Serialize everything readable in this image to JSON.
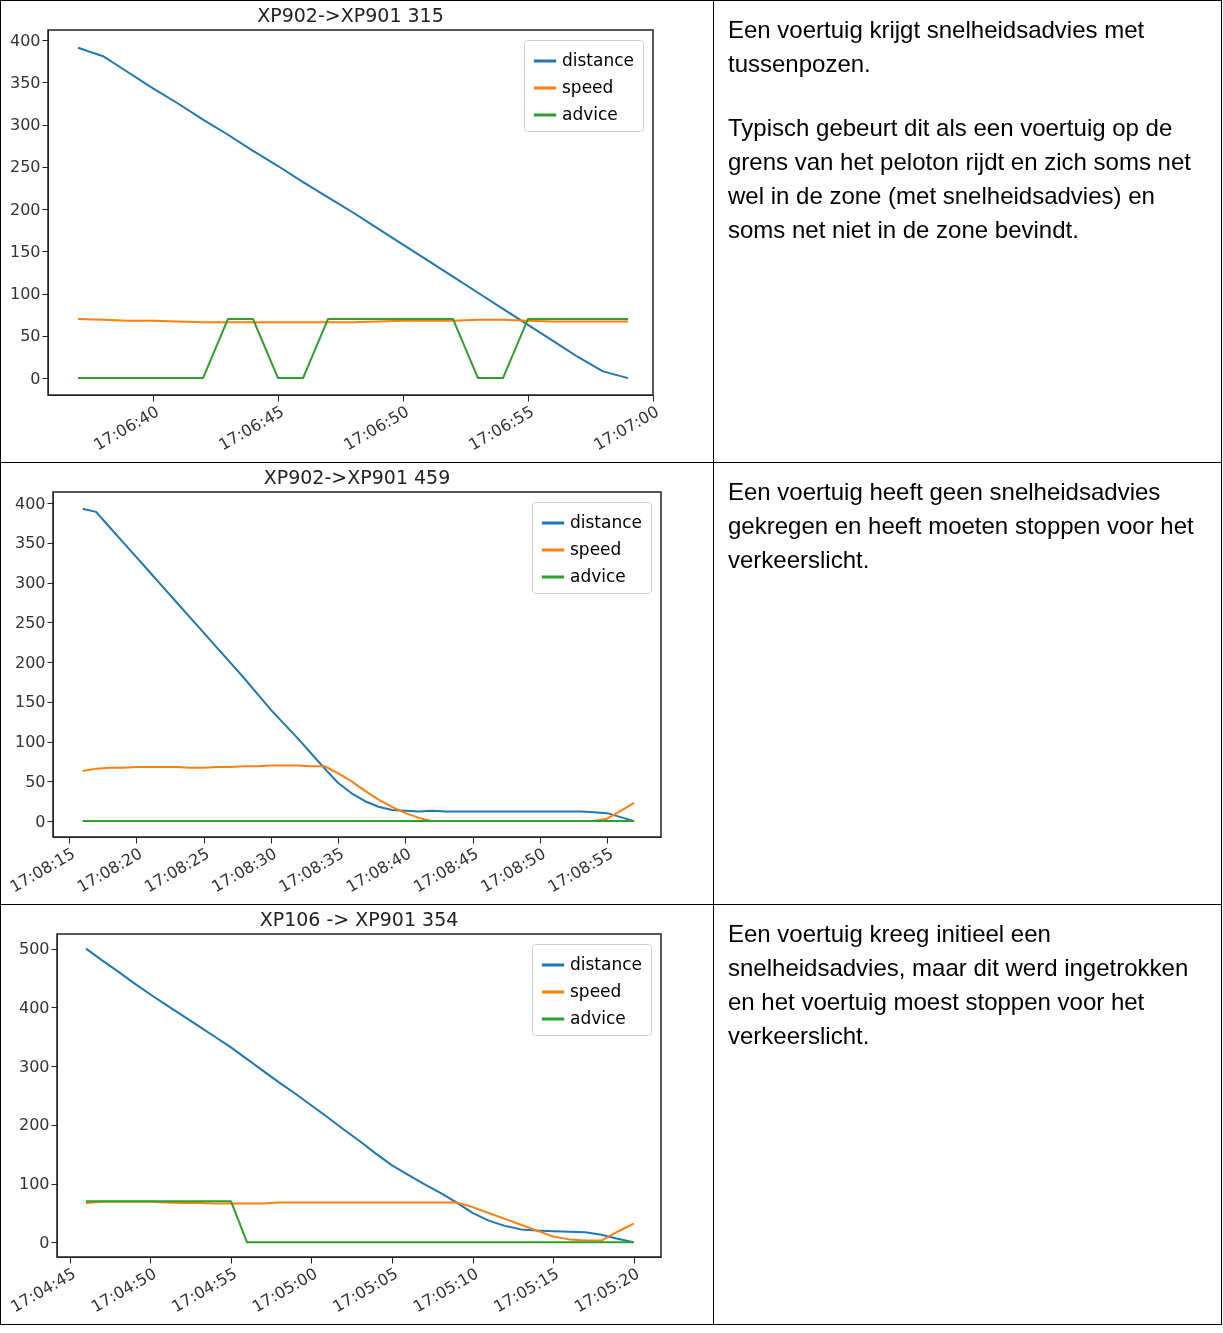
{
  "chart_data": [
    {
      "type": "line",
      "title": "XP902->XP901 315",
      "legend": "top right",
      "grid": false,
      "x": [
        17.110278,
        17.110556,
        17.110833,
        17.111111,
        17.111389,
        17.111667,
        17.111944,
        17.112222,
        17.1125,
        17.112778,
        17.113056,
        17.113333,
        17.113611,
        17.113889,
        17.114167,
        17.114444,
        17.114722,
        17.115,
        17.115278,
        17.115556,
        17.115833,
        17.116111,
        17.116389
      ],
      "xlim": [
        17.109944,
        17.116667
      ],
      "xticks": [
        {
          "value": 17.111111,
          "label": "17:06:40"
        },
        {
          "value": 17.1125,
          "label": "17:06:45"
        },
        {
          "value": 17.113889,
          "label": "17:06:50"
        },
        {
          "value": 17.115278,
          "label": "17:06:55"
        },
        {
          "value": 17.116667,
          "label": "17:07:00"
        }
      ],
      "ylim": [
        -20,
        412
      ],
      "yticks": [
        0,
        50,
        100,
        150,
        200,
        250,
        300,
        350,
        400
      ],
      "series": [
        {
          "name": "distance",
          "color": "#1f77b4",
          "values": [
            391,
            381,
            362,
            343,
            325,
            306,
            288,
            269,
            251,
            232,
            214,
            196,
            177,
            158,
            139,
            120,
            101,
            82,
            63,
            44,
            25,
            8,
            0
          ]
        },
        {
          "name": "speed",
          "color": "#ff7f0e",
          "values": [
            70,
            69,
            68,
            68,
            67,
            66,
            66,
            66,
            66,
            66,
            66,
            66,
            67,
            68,
            68,
            68,
            69,
            69,
            68,
            67,
            67,
            67,
            67
          ]
        },
        {
          "name": "advice",
          "color": "#2ca02c",
          "values": [
            0,
            0,
            0,
            0,
            0,
            0,
            70,
            70,
            0,
            0,
            70,
            70,
            70,
            70,
            70,
            70,
            0,
            0,
            70,
            70,
            70,
            70,
            70
          ]
        }
      ]
    },
    {
      "type": "other",
      "annotations": [
        "Een voertuig krijgt snelheidsadvies met tussenpozen.",
        "Typisch gebeurt dit als een voertuig op de grens van het peloton rijdt en zich soms net wel in de zone (met snelheidsadvies) en soms net niet in de zone bevindt."
      ]
    },
    {
      "type": "line",
      "title": "XP902->XP901 459",
      "legend": "top right",
      "grid": false,
      "x": [
        17.137778,
        17.138056,
        17.138333,
        17.138611,
        17.138889,
        17.139167,
        17.139444,
        17.139722,
        17.14,
        17.140278,
        17.140556,
        17.140833,
        17.141111,
        17.141389,
        17.141667,
        17.141944,
        17.142222,
        17.1425,
        17.142778,
        17.143056,
        17.143333,
        17.143611,
        17.143889,
        17.144167,
        17.144444,
        17.144722,
        17.145,
        17.145278,
        17.145556,
        17.145833,
        17.146111,
        17.146389,
        17.146667,
        17.146944,
        17.147222,
        17.1475,
        17.147778,
        17.148056,
        17.148333,
        17.148611,
        17.148889,
        17.149167
      ],
      "xlim": [
        17.137167,
        17.149722
      ],
      "xticks": [
        {
          "value": 17.1375,
          "label": "17:08:15"
        },
        {
          "value": 17.138889,
          "label": "17:08:20"
        },
        {
          "value": 17.140278,
          "label": "17:08:25"
        },
        {
          "value": 17.141667,
          "label": "17:08:30"
        },
        {
          "value": 17.143056,
          "label": "17:08:35"
        },
        {
          "value": 17.144444,
          "label": "17:08:40"
        },
        {
          "value": 17.145833,
          "label": "17:08:45"
        },
        {
          "value": 17.147222,
          "label": "17:08:50"
        },
        {
          "value": 17.148611,
          "label": "17:08:55"
        }
      ],
      "ylim": [
        -20,
        414
      ],
      "yticks": [
        0,
        50,
        100,
        150,
        200,
        250,
        300,
        350,
        400
      ],
      "series": [
        {
          "name": "distance",
          "color": "#1f77b4",
          "values": [
            393,
            389,
            370,
            351,
            332,
            313,
            294,
            275,
            256,
            237,
            218,
            199,
            180,
            160,
            140,
            122,
            104,
            85,
            66,
            48,
            35,
            25,
            18,
            14,
            13,
            12,
            13,
            12,
            12,
            12,
            12,
            12,
            12,
            12,
            12,
            12,
            12,
            12,
            11,
            10,
            5,
            0
          ]
        },
        {
          "name": "speed",
          "color": "#ff7f0e",
          "values": [
            63,
            66,
            67,
            67,
            68,
            68,
            68,
            68,
            67,
            67,
            68,
            68,
            69,
            69,
            70,
            70,
            70,
            69,
            69,
            60,
            50,
            38,
            27,
            18,
            10,
            4,
            0,
            0,
            0,
            0,
            0,
            0,
            0,
            0,
            0,
            0,
            0,
            0,
            0,
            3,
            13,
            23
          ]
        },
        {
          "name": "advice",
          "color": "#2ca02c",
          "values": [
            0,
            0,
            0,
            0,
            0,
            0,
            0,
            0,
            0,
            0,
            0,
            0,
            0,
            0,
            0,
            0,
            0,
            0,
            0,
            0,
            0,
            0,
            0,
            0,
            0,
            0,
            0,
            0,
            0,
            0,
            0,
            0,
            0,
            0,
            0,
            0,
            0,
            0,
            0,
            0,
            0,
            0
          ]
        }
      ]
    },
    {
      "type": "other",
      "annotations": [
        "Een voertuig heeft geen snelheidsadvies gekregen en heeft moeten stoppen voor het verkeerslicht."
      ]
    },
    {
      "type": "line",
      "title": "XP106 -> XP901 354",
      "legend": "top right",
      "grid": false,
      "x": [
        17.079444,
        17.079722,
        17.08,
        17.080278,
        17.080556,
        17.080833,
        17.081111,
        17.081389,
        17.081667,
        17.081944,
        17.082222,
        17.0825,
        17.082778,
        17.083056,
        17.083333,
        17.083611,
        17.083889,
        17.084167,
        17.084444,
        17.084722,
        17.085,
        17.085278,
        17.085556,
        17.085833,
        17.086111,
        17.086389,
        17.086667,
        17.086944,
        17.087222,
        17.0875,
        17.087778,
        17.088056,
        17.088333,
        17.088611,
        17.088889
      ],
      "xlim": [
        17.078944,
        17.089361
      ],
      "xticks": [
        {
          "value": 17.079167,
          "label": "17:04:45"
        },
        {
          "value": 17.080556,
          "label": "17:04:50"
        },
        {
          "value": 17.081944,
          "label": "17:04:55"
        },
        {
          "value": 17.083333,
          "label": "17:05:00"
        },
        {
          "value": 17.084722,
          "label": "17:05:05"
        },
        {
          "value": 17.086111,
          "label": "17:05:10"
        },
        {
          "value": 17.0875,
          "label": "17:05:15"
        },
        {
          "value": 17.088889,
          "label": "17:05:20"
        }
      ],
      "ylim": [
        -25,
        525
      ],
      "yticks": [
        0,
        100,
        200,
        300,
        400,
        500
      ],
      "series": [
        {
          "name": "distance",
          "color": "#1f77b4",
          "values": [
            500,
            480,
            461,
            441,
            422,
            404,
            386,
            368,
            350,
            332,
            312,
            292,
            272,
            253,
            233,
            213,
            192,
            172,
            151,
            131,
            115,
            99,
            84,
            68,
            50,
            37,
            28,
            22,
            20,
            19,
            18,
            17,
            13,
            6,
            0
          ]
        },
        {
          "name": "speed",
          "color": "#ff7f0e",
          "values": [
            67,
            69,
            69,
            69,
            69,
            68,
            67,
            67,
            66,
            66,
            66,
            66,
            68,
            68,
            68,
            68,
            68,
            68,
            68,
            68,
            68,
            68,
            68,
            68,
            60,
            50,
            40,
            30,
            20,
            10,
            5,
            3,
            3,
            18,
            32
          ]
        },
        {
          "name": "advice",
          "color": "#2ca02c",
          "values": [
            70,
            70,
            70,
            70,
            70,
            70,
            70,
            70,
            70,
            70,
            0,
            0,
            0,
            0,
            0,
            0,
            0,
            0,
            0,
            0,
            0,
            0,
            0,
            0,
            0,
            0,
            0,
            0,
            0,
            0,
            0,
            0,
            0,
            0,
            0
          ]
        }
      ]
    },
    {
      "type": "other",
      "annotations": [
        "Een voertuig kreeg initieel een snelheidsadvies, maar dit werd ingetrokken en het voertuig moest stoppen voor het verkeerslicht."
      ]
    }
  ]
}
